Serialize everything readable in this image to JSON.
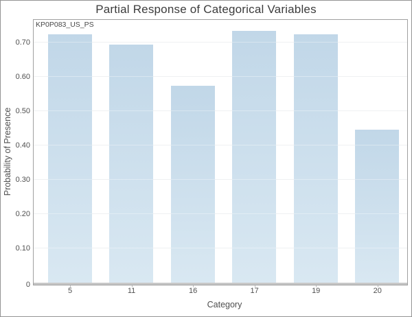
{
  "chart_data": {
    "type": "bar",
    "title": "Partial Response of Categorical Variables",
    "series_label": "KP0P083_US_PS",
    "categories": [
      "5",
      "11",
      "16",
      "17",
      "19",
      "20"
    ],
    "values": [
      0.7225,
      0.6925,
      0.5725,
      0.7325,
      0.7225,
      0.4435
    ],
    "xlabel": "Category",
    "ylabel": "Probability of Presence",
    "ylim": [
      0,
      0.764
    ],
    "yticks": [
      0,
      0.1,
      0.2,
      0.3,
      0.4,
      0.5,
      0.6,
      0.7
    ],
    "ytick_labels": [
      "0",
      "0.10",
      "0.20",
      "0.30",
      "0.40",
      "0.50",
      "0.60",
      "0.70"
    ],
    "grid": true,
    "legend": "none",
    "bar_color_top": "#c1d7e8",
    "bar_color_bottom": "#d9e8f2"
  },
  "colors": {
    "outer_border": "#939393",
    "plot_border": "#9f9f9f",
    "gridline": "#eef0f2",
    "baseline": "#c7c7c7",
    "title_text": "#3b3b3b",
    "axis_text": "#4f4f4f"
  }
}
